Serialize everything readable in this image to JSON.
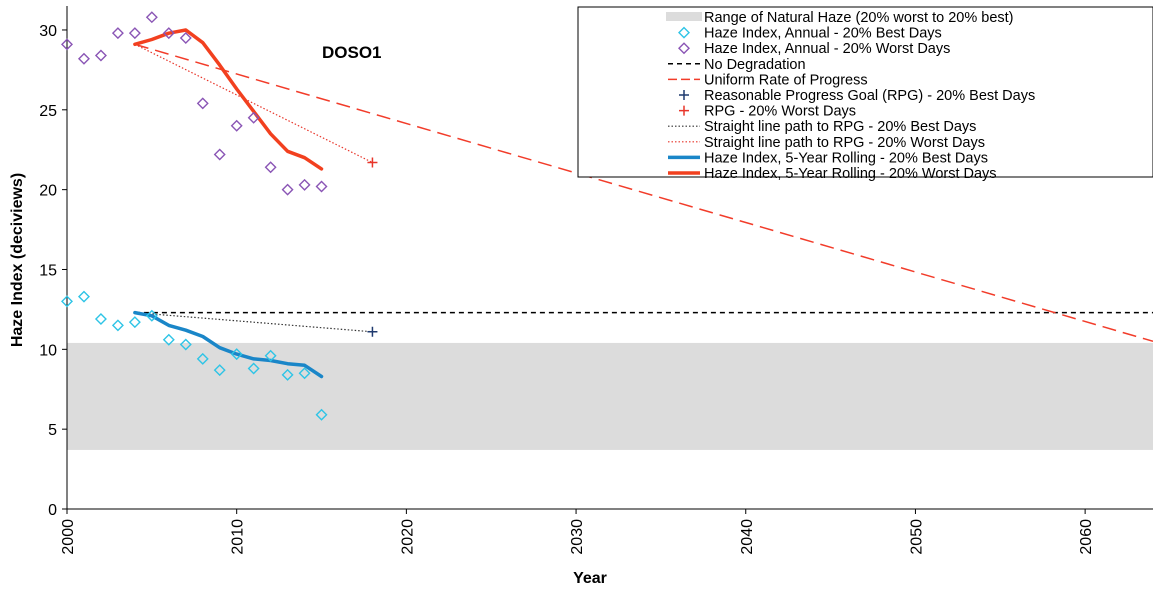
{
  "chart_data": {
    "type": "line",
    "annotation": "DOSO1",
    "xlabel": "Year",
    "ylabel": "Haze Index (deciviews)",
    "xlim": [
      2000,
      2064
    ],
    "ylim": [
      0,
      31
    ],
    "x_ticks": [
      "2000",
      "2010",
      "2020",
      "2030",
      "2040",
      "2050",
      "2060"
    ],
    "y_ticks": [
      "0",
      "5",
      "10",
      "15",
      "20",
      "25",
      "30"
    ],
    "legend_position": "top-right",
    "natural_haze_range": {
      "label": "Range of Natural Haze (20% worst to 20% best)",
      "low": 3.7,
      "high": 10.4,
      "color": "#dcdcdc"
    },
    "series": [
      {
        "name": "Haze Index, Annual - 20% Best Days",
        "style": "diamond",
        "color": "#2ec4e6",
        "points": [
          [
            2000,
            13.0
          ],
          [
            2001,
            13.3
          ],
          [
            2002,
            11.9
          ],
          [
            2003,
            11.5
          ],
          [
            2004,
            11.7
          ],
          [
            2005,
            12.1
          ],
          [
            2006,
            10.6
          ],
          [
            2007,
            10.3
          ],
          [
            2008,
            9.4
          ],
          [
            2009,
            8.7
          ],
          [
            2010,
            9.7
          ],
          [
            2011,
            8.8
          ],
          [
            2012,
            9.6
          ],
          [
            2013,
            8.4
          ],
          [
            2014,
            8.5
          ],
          [
            2015,
            5.9
          ]
        ]
      },
      {
        "name": "Haze Index, Annual - 20% Worst Days",
        "style": "diamond",
        "color": "#8a55b5",
        "points": [
          [
            2000,
            29.1
          ],
          [
            2001,
            28.2
          ],
          [
            2002,
            28.4
          ],
          [
            2003,
            29.8
          ],
          [
            2004,
            29.8
          ],
          [
            2005,
            30.8
          ],
          [
            2006,
            29.8
          ],
          [
            2007,
            29.5
          ],
          [
            2008,
            25.4
          ],
          [
            2009,
            22.2
          ],
          [
            2010,
            24.0
          ],
          [
            2011,
            24.5
          ],
          [
            2012,
            21.4
          ],
          [
            2013,
            20.0
          ],
          [
            2014,
            20.3
          ],
          [
            2015,
            20.2
          ]
        ]
      },
      {
        "name": "No Degradation",
        "style": "dashed",
        "color": "#000000",
        "points": [
          [
            2004,
            12.3
          ],
          [
            2064,
            12.3
          ]
        ]
      },
      {
        "name": "Uniform Rate of Progress",
        "style": "longdash",
        "color": "#f23c2a",
        "points": [
          [
            2004,
            29.1
          ],
          [
            2064,
            10.5
          ]
        ]
      },
      {
        "name": "Reasonable Progress Goal (RPG) - 20% Best Days",
        "style": "plus",
        "color": "#1f3a6e",
        "points": [
          [
            2018,
            11.1
          ]
        ]
      },
      {
        "name": "RPG - 20% Worst Days",
        "style": "plus",
        "color": "#e8352a",
        "points": [
          [
            2018,
            21.7
          ]
        ]
      },
      {
        "name": "Straight line path to RPG - 20% Best Days",
        "style": "dotted",
        "color": "#333333",
        "points": [
          [
            2004,
            12.3
          ],
          [
            2018,
            11.1
          ]
        ]
      },
      {
        "name": "Straight line path to RPG - 20% Worst Days",
        "style": "dotted",
        "color": "#e8352a",
        "points": [
          [
            2004,
            29.1
          ],
          [
            2018,
            21.7
          ]
        ]
      },
      {
        "name": "Haze Index, 5-Year Rolling - 20% Best Days",
        "style": "thick",
        "color": "#1a86c8",
        "points": [
          [
            2004,
            12.3
          ],
          [
            2005,
            12.1
          ],
          [
            2006,
            11.5
          ],
          [
            2007,
            11.2
          ],
          [
            2008,
            10.8
          ],
          [
            2009,
            10.1
          ],
          [
            2010,
            9.7
          ],
          [
            2011,
            9.4
          ],
          [
            2012,
            9.3
          ],
          [
            2013,
            9.1
          ],
          [
            2014,
            9.0
          ],
          [
            2015,
            8.3
          ]
        ]
      },
      {
        "name": "Haze Index, 5-Year Rolling - 20% Worst Days",
        "style": "thick",
        "color": "#f2401f",
        "points": [
          [
            2004,
            29.1
          ],
          [
            2005,
            29.4
          ],
          [
            2006,
            29.8
          ],
          [
            2007,
            30.0
          ],
          [
            2008,
            29.2
          ],
          [
            2009,
            27.8
          ],
          [
            2010,
            26.3
          ],
          [
            2011,
            24.9
          ],
          [
            2012,
            23.5
          ],
          [
            2013,
            22.4
          ],
          [
            2014,
            22.0
          ],
          [
            2015,
            21.3
          ]
        ]
      }
    ]
  }
}
